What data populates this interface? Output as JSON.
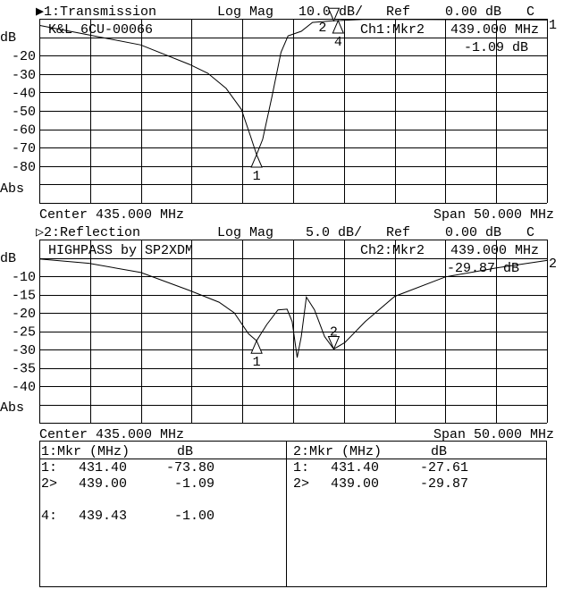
{
  "channels": [
    {
      "header": {
        "indicator": "▶1:Transmission",
        "format": "Log Mag",
        "scale": "10.0 dB/",
        "ref_label": "Ref",
        "ref_value": "0.00 dB",
        "flag": "C"
      },
      "title": "K&L 6CU-00066",
      "marker_readout": {
        "label": "Ch1:Mkr2",
        "freq": "439.000 MHz",
        "value": "-1.09 dB"
      },
      "y_unit": "dB",
      "y_ticks": [
        "-20",
        "-30",
        "-40",
        "-50",
        "-60",
        "-70",
        "-80"
      ],
      "y_mode": "Abs",
      "center": "Center 435.000 MHz",
      "span": "Span 50.000 MHz",
      "trace_end_label": "1"
    },
    {
      "header": {
        "indicator": "▷2:Reflection",
        "format": "Log Mag",
        "scale": "5.0 dB/",
        "ref_label": "Ref",
        "ref_value": "0.00 dB",
        "flag": "C"
      },
      "title": "HIGHPASS by SP2XDM",
      "marker_readout": {
        "label": "Ch2:Mkr2",
        "freq": "439.000 MHz",
        "value": "-29.87 dB"
      },
      "y_unit": "dB",
      "y_ticks": [
        "-10",
        "-15",
        "-20",
        "-25",
        "-30",
        "-35",
        "-40"
      ],
      "y_mode": "Abs",
      "center": "Center 435.000 MHz",
      "span": "Span 50.000 MHz",
      "trace_end_label": "2"
    }
  ],
  "marker_table": [
    {
      "header": {
        "mkr": "1:Mkr (MHz)",
        "unit": "dB"
      },
      "rows": [
        {
          "id": "1:",
          "freq": "431.40",
          "value": "-73.80"
        },
        {
          "id": "2>",
          "freq": "439.00",
          "value": "-1.09"
        },
        {
          "id": "",
          "freq": "",
          "value": ""
        },
        {
          "id": "4:",
          "freq": "439.43",
          "value": "-1.00"
        }
      ]
    },
    {
      "header": {
        "mkr": "2:Mkr (MHz)",
        "unit": "dB"
      },
      "rows": [
        {
          "id": "1:",
          "freq": "431.40",
          "value": "-27.61"
        },
        {
          "id": "2>",
          "freq": "439.00",
          "value": "-29.87"
        }
      ]
    }
  ],
  "chart_data": [
    {
      "type": "line",
      "title": "1:Transmission",
      "xlabel": "",
      "ylabel": "dB",
      "xlim": [
        410,
        460
      ],
      "ylim": [
        -100,
        0
      ],
      "grid": true,
      "x_divisions": 10,
      "y_divisions": 10,
      "x": [
        410,
        414.9,
        420,
        424.8,
        426.6,
        428.4,
        429.9,
        430.8,
        431.4,
        432.0,
        432.9,
        433.8,
        434.5,
        435.8,
        436.9,
        438.9,
        442.1,
        460
      ],
      "y": [
        -3.6,
        -8.8,
        -14.2,
        -24.8,
        -29.6,
        -37.8,
        -49.2,
        -63.8,
        -73.8,
        -65.5,
        -42.7,
        -18.2,
        -9.3,
        -6.8,
        -2.0,
        -1.1,
        -0.3,
        -0.7
      ],
      "markers": [
        {
          "label": "1",
          "x": 431.4,
          "y": -73.8,
          "dir": "up"
        },
        {
          "label": "2",
          "x": 439.0,
          "y": -1.09,
          "dir": "down"
        },
        {
          "label": "4",
          "x": 439.43,
          "y": -1.0,
          "dir": "up"
        }
      ]
    },
    {
      "type": "line",
      "title": "2:Reflection",
      "xlabel": "",
      "ylabel": "dB",
      "xlim": [
        410,
        460
      ],
      "ylim": [
        -50,
        0
      ],
      "grid": true,
      "x_divisions": 10,
      "y_divisions": 10,
      "x": [
        410,
        414.9,
        420,
        424.8,
        427.7,
        429.2,
        430.6,
        431.4,
        432.4,
        433.5,
        434.4,
        434.9,
        435.4,
        435.8,
        436.3,
        437.1,
        438.1,
        439.0,
        440.1,
        442.1,
        445.0,
        450.0,
        455.1,
        460
      ],
      "y": [
        -5.3,
        -6.5,
        -9.0,
        -13.9,
        -17.1,
        -20.0,
        -25.7,
        -27.6,
        -23.2,
        -19.2,
        -19.0,
        -22.4,
        -32.2,
        -26.5,
        -15.7,
        -19.2,
        -26.5,
        -29.9,
        -28.1,
        -22.4,
        -15.5,
        -10.2,
        -7.7,
        -5.7
      ],
      "markers": [
        {
          "label": "1",
          "x": 431.4,
          "y": -27.61,
          "dir": "up"
        },
        {
          "label": "2",
          "x": 439.0,
          "y": -29.87,
          "dir": "down"
        }
      ]
    }
  ]
}
